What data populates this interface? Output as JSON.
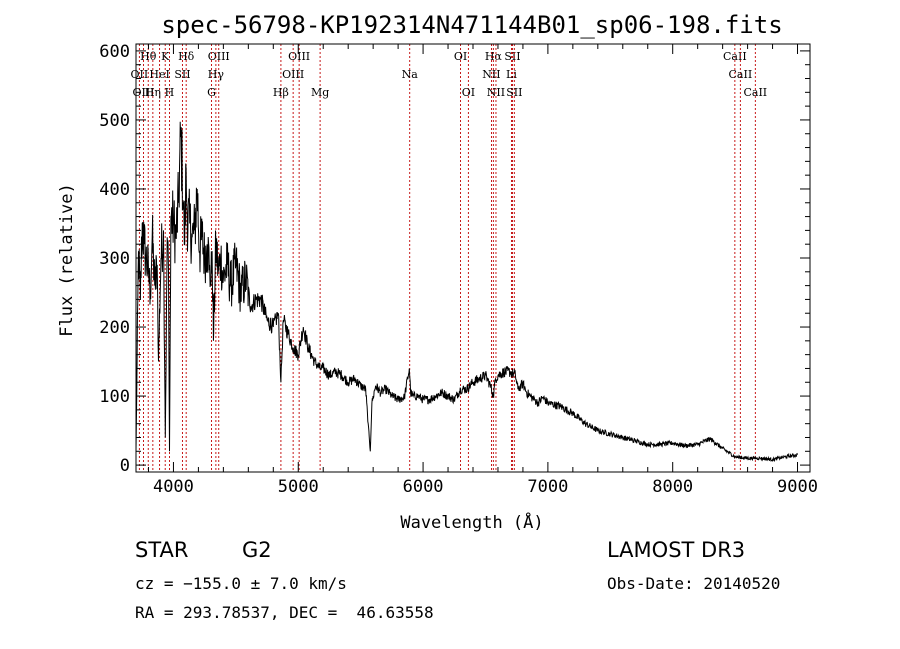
{
  "chart_data": {
    "type": "line",
    "title": "spec-56798-KP192314N471144B01_sp06-198.fits",
    "xlabel": "Wavelength (Å)",
    "ylabel": "Flux (relative)",
    "xlim": [
      3700,
      9100
    ],
    "ylim": [
      -10,
      610
    ],
    "xticks": [
      4000,
      5000,
      6000,
      7000,
      8000,
      9000
    ],
    "yticks": [
      0,
      100,
      200,
      300,
      400,
      500,
      600
    ],
    "line_color": "#000000",
    "marker_color": "#c00000",
    "spectrum": {
      "name": "flux",
      "x": [
        3700,
        3720,
        3735,
        3750,
        3765,
        3780,
        3800,
        3815,
        3830,
        3850,
        3870,
        3880,
        3900,
        3920,
        3935,
        3950,
        3960,
        3968,
        3980,
        4000,
        4020,
        4040,
        4060,
        4080,
        4090,
        4101,
        4110,
        4130,
        4150,
        4170,
        4190,
        4210,
        4230,
        4250,
        4270,
        4290,
        4300,
        4310,
        4320,
        4340,
        4360,
        4380,
        4400,
        4430,
        4460,
        4500,
        4540,
        4580,
        4620,
        4660,
        4700,
        4750,
        4800,
        4840,
        4861,
        4880,
        4920,
        4960,
        5000,
        5040,
        5080,
        5130,
        5175,
        5200,
        5250,
        5300,
        5350,
        5400,
        5450,
        5500,
        5540,
        5560,
        5577,
        5590,
        5620,
        5660,
        5700,
        5750,
        5800,
        5850,
        5890,
        5900,
        5920,
        5960,
        6000,
        6050,
        6100,
        6150,
        6200,
        6250,
        6300,
        6350,
        6400,
        6450,
        6500,
        6540,
        6563,
        6580,
        6600,
        6650,
        6700,
        6740,
        6760,
        6800,
        6830,
        6860,
        6890,
        6920,
        6960,
        7000,
        7100,
        7200,
        7300,
        7400,
        7500,
        7600,
        7700,
        7800,
        7900,
        8000,
        8100,
        8200,
        8300,
        8400,
        8500,
        8600,
        8700,
        8800,
        8900,
        9000
      ],
      "y": [
        20,
        310,
        240,
        350,
        320,
        300,
        280,
        250,
        330,
        260,
        290,
        150,
        300,
        340,
        40,
        330,
        280,
        20,
        360,
        350,
        330,
        380,
        480,
        370,
        320,
        430,
        360,
        350,
        330,
        340,
        400,
        310,
        330,
        300,
        320,
        290,
        260,
        310,
        180,
        320,
        280,
        300,
        270,
        290,
        260,
        290,
        250,
        270,
        230,
        240,
        240,
        210,
        200,
        220,
        120,
        210,
        190,
        170,
        160,
        200,
        170,
        150,
        140,
        140,
        130,
        135,
        130,
        120,
        125,
        115,
        110,
        60,
        20,
        90,
        115,
        105,
        110,
        100,
        95,
        98,
        140,
        105,
        100,
        100,
        95,
        95,
        100,
        105,
        100,
        95,
        110,
        110,
        120,
        125,
        130,
        115,
        100,
        125,
        130,
        135,
        135,
        130,
        110,
        118,
        105,
        100,
        95,
        90,
        98,
        90,
        85,
        75,
        60,
        50,
        45,
        40,
        35,
        30,
        30,
        32,
        28,
        30,
        38,
        24,
        12,
        10,
        10,
        8,
        12,
        15
      ]
    },
    "line_markers": [
      {
        "label": "Hθ",
        "wl": 3798,
        "row": 0
      },
      {
        "label": "K",
        "wl": 3934,
        "row": 0
      },
      {
        "label": "Hδ",
        "wl": 4102,
        "row": 0
      },
      {
        "label": "OIII",
        "wl": 4363,
        "row": 0
      },
      {
        "label": "OIII",
        "wl": 5007,
        "row": 0
      },
      {
        "label": "OI",
        "wl": 6300,
        "row": 0
      },
      {
        "label": "Hα",
        "wl": 6563,
        "row": 0
      },
      {
        "label": "SII",
        "wl": 6716,
        "row": 0
      },
      {
        "label": "CaII",
        "wl": 8498,
        "row": 0
      },
      {
        "label": "OII",
        "wl": 3727,
        "row": 1
      },
      {
        "label": "HeI",
        "wl": 3889,
        "row": 1
      },
      {
        "label": "SII",
        "wl": 4072,
        "row": 1
      },
      {
        "label": "Hγ",
        "wl": 4340,
        "row": 1
      },
      {
        "label": "OIII",
        "wl": 4959,
        "row": 1
      },
      {
        "label": "Na",
        "wl": 5893,
        "row": 1
      },
      {
        "label": "NII",
        "wl": 6548,
        "row": 1
      },
      {
        "label": "Li",
        "wl": 6708,
        "row": 1
      },
      {
        "label": "CaII",
        "wl": 8542,
        "row": 1
      },
      {
        "label": "OIII",
        "wl": 3760,
        "row": 2
      },
      {
        "label": "Hη",
        "wl": 3835,
        "row": 2
      },
      {
        "label": "H",
        "wl": 3968,
        "row": 2
      },
      {
        "label": "G",
        "wl": 4305,
        "row": 2
      },
      {
        "label": "Hβ",
        "wl": 4861,
        "row": 2
      },
      {
        "label": "Mg",
        "wl": 5175,
        "row": 2
      },
      {
        "label": "OI",
        "wl": 6363,
        "row": 2
      },
      {
        "label": "NII",
        "wl": 6584,
        "row": 2
      },
      {
        "label": "SII",
        "wl": 6731,
        "row": 2
      },
      {
        "label": "CaII",
        "wl": 8662,
        "row": 2
      }
    ]
  },
  "info": {
    "object_type": "STAR",
    "subclass": "G2",
    "survey": "LAMOST DR3",
    "redshift": "cz = −155.0 ± 7.0 km/s",
    "obs_date": "Obs-Date: 20140520",
    "coords": "RA = 293.78537, DEC =  46.63558"
  }
}
